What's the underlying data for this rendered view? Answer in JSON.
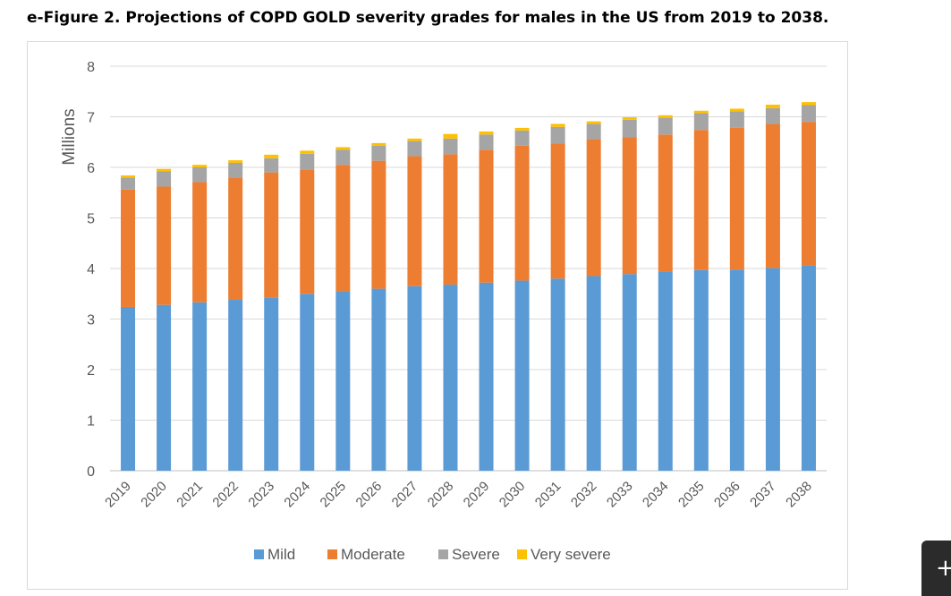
{
  "figure": {
    "title": "e-Figure 2. Projections of COPD GOLD severity grades for males in the US from 2019 to 2038."
  },
  "float_button": {
    "icon": "plus-icon",
    "glyph": "+"
  },
  "chart_data": {
    "type": "bar",
    "stacked": true,
    "title": "",
    "xlabel": "",
    "ylabel": "Millions",
    "ylim": [
      0,
      8
    ],
    "yticks": [
      0,
      1,
      2,
      3,
      4,
      5,
      6,
      7,
      8
    ],
    "grid": true,
    "legend_position": "bottom",
    "categories": [
      "2019",
      "2020",
      "2021",
      "2022",
      "2023",
      "2024",
      "2025",
      "2026",
      "2027",
      "2028",
      "2029",
      "2030",
      "2031",
      "2032",
      "2033",
      "2034",
      "2035",
      "2036",
      "2037",
      "2038"
    ],
    "series": [
      {
        "name": "Mild",
        "color": "#5b9bd5",
        "values": [
          3.24,
          3.28,
          3.33,
          3.38,
          3.43,
          3.5,
          3.55,
          3.6,
          3.65,
          3.68,
          3.72,
          3.76,
          3.8,
          3.85,
          3.89,
          3.93,
          3.97,
          3.98,
          4.01,
          4.06
        ]
      },
      {
        "name": "Moderate",
        "color": "#ed7d31",
        "values": [
          2.32,
          2.34,
          2.38,
          2.42,
          2.47,
          2.46,
          2.5,
          2.53,
          2.57,
          2.58,
          2.63,
          2.67,
          2.67,
          2.71,
          2.71,
          2.72,
          2.77,
          2.8,
          2.85,
          2.84
        ]
      },
      {
        "name": "Severe",
        "color": "#a5a5a5",
        "values": [
          0.24,
          0.3,
          0.29,
          0.29,
          0.28,
          0.31,
          0.3,
          0.3,
          0.3,
          0.31,
          0.3,
          0.3,
          0.33,
          0.3,
          0.34,
          0.33,
          0.33,
          0.33,
          0.31,
          0.33
        ]
      },
      {
        "name": "Very severe",
        "color": "#ffc000",
        "values": [
          0.04,
          0.05,
          0.05,
          0.05,
          0.07,
          0.06,
          0.05,
          0.05,
          0.05,
          0.09,
          0.06,
          0.05,
          0.06,
          0.05,
          0.05,
          0.05,
          0.05,
          0.05,
          0.07,
          0.06
        ]
      }
    ]
  }
}
